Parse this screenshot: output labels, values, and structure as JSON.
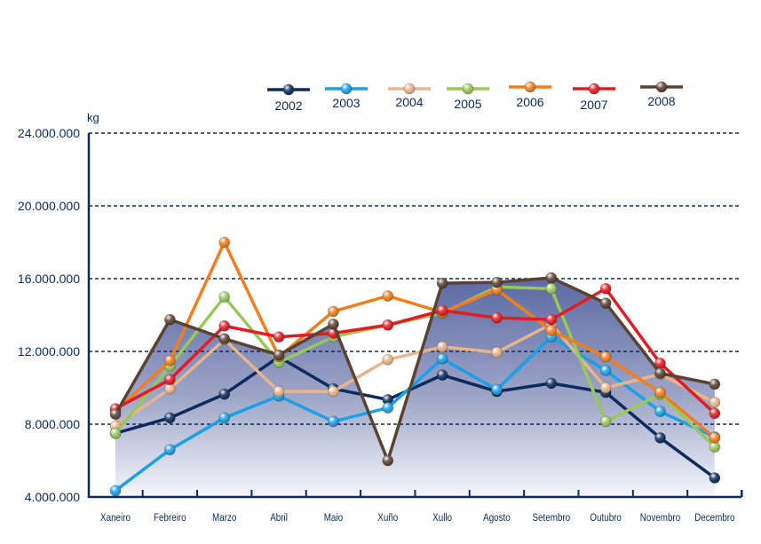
{
  "chart_data": {
    "type": "line",
    "title": "",
    "xlabel": "",
    "ylabel": "kg",
    "ylim": [
      4000000,
      24000000
    ],
    "yticks": [
      "4.000.000",
      "8.000.000",
      "12.000.000",
      "16.000.000",
      "20.000.000",
      "24.000.000"
    ],
    "ytick_values": [
      4000000,
      8000000,
      12000000,
      16000000,
      20000000,
      24000000
    ],
    "grid": true,
    "legend_position": "top",
    "categories": [
      "Xaneiro",
      "Febreiro",
      "Marzo",
      "Abril",
      "Maio",
      "Xuño",
      "Xullo",
      "Agosto",
      "Setembro",
      "Outubro",
      "Novembro",
      "Decembro"
    ],
    "area_series": "2008",
    "series": [
      {
        "name": "2002",
        "color": "#0b2b5c",
        "values": [
          7500000,
          8350000,
          9650000,
          11700000,
          9950000,
          9350000,
          10700000,
          9800000,
          10250000,
          9750000,
          7250000,
          5050000
        ]
      },
      {
        "name": "2003",
        "color": "#1aa0e6",
        "values": [
          4350000,
          6600000,
          8350000,
          9550000,
          8150000,
          8900000,
          11600000,
          9900000,
          12800000,
          10950000,
          8700000,
          7300000
        ]
      },
      {
        "name": "2004",
        "color": "#e8b48c",
        "values": [
          7900000,
          9950000,
          12650000,
          9800000,
          9800000,
          11550000,
          12250000,
          11950000,
          13500000,
          10000000,
          10750000,
          9200000
        ]
      },
      {
        "name": "2005",
        "color": "#98c85a",
        "values": [
          7500000,
          11200000,
          15000000,
          11400000,
          12800000,
          13450000,
          14100000,
          15550000,
          15450000,
          8150000,
          9650000,
          6750000
        ]
      },
      {
        "name": "2006",
        "color": "#f07e1e",
        "values": [
          8700000,
          11500000,
          18000000,
          11700000,
          14200000,
          15050000,
          14150000,
          15400000,
          13150000,
          11700000,
          9750000,
          7250000
        ]
      },
      {
        "name": "2007",
        "color": "#e31b23",
        "values": [
          8850000,
          10450000,
          13400000,
          12800000,
          13000000,
          13450000,
          14250000,
          13850000,
          13750000,
          15450000,
          11350000,
          8600000
        ]
      },
      {
        "name": "2008",
        "color": "#5a4232",
        "values": [
          8550000,
          13750000,
          12700000,
          11800000,
          13500000,
          6000000,
          15750000,
          15800000,
          16050000,
          14650000,
          10800000,
          10200000
        ]
      }
    ]
  }
}
